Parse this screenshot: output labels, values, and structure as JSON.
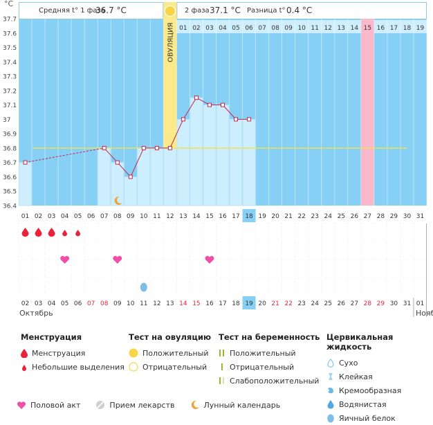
{
  "header": {
    "unit": "°C",
    "phase1_label": "Средняя t° 1 фаза",
    "phase1_value": "36.7 °C",
    "phase2_label": "2 фаза",
    "phase2_value": "37.1 °C",
    "diff_label": "Разница t°",
    "diff_value": "0.4 °C",
    "ovulation_label": "ОВУЛЯЦИЯ"
  },
  "months": {
    "current": "Октябрь",
    "next": "Нояб"
  },
  "colors": {
    "sky": "#87d0f5",
    "ovulation": "#fbe98a",
    "highlight": "#f9b8cc",
    "bar": "#cdeefc",
    "line": "#c8234b",
    "coverline": "#f2e24a"
  },
  "chart_data": {
    "type": "line",
    "ylim": [
      36.4,
      37.7
    ],
    "yticks": [
      "37.7",
      "37.6",
      "37.5",
      "37.4",
      "37.3",
      "37.2",
      "37.1",
      "37",
      "36.9",
      "36.8",
      "36.7",
      "36.6",
      "36.5",
      "36.4"
    ],
    "cycle_days": [
      "01",
      "02",
      "03",
      "04",
      "05",
      "06",
      "07",
      "08",
      "09",
      "10",
      "11",
      "12",
      "13",
      "14",
      "15",
      "16",
      "17",
      "18",
      "19",
      "20",
      "21",
      "22",
      "23",
      "24",
      "25",
      "26",
      "27",
      "28",
      "29",
      "30",
      "31"
    ],
    "phase2_days": [
      "01",
      "02",
      "03",
      "04",
      "05",
      "06",
      "07",
      "08",
      "09",
      "10",
      "11",
      "12",
      "13",
      "14",
      "15",
      "16",
      "17",
      "18",
      "19"
    ],
    "dates": [
      "02",
      "03",
      "04",
      "05",
      "06",
      "07",
      "08",
      "09",
      "10",
      "11",
      "12",
      "13",
      "14",
      "15",
      "16",
      "17",
      "18",
      "19",
      "20",
      "21",
      "22",
      "23",
      "24",
      "25",
      "26",
      "27",
      "28",
      "29",
      "30",
      "31",
      "01"
    ],
    "red_dates": [
      "07",
      "08",
      "14",
      "15",
      "21",
      "22",
      "28",
      "29"
    ],
    "current_cycle_day": "18",
    "current_date": "19",
    "ovulation_day": 12,
    "highlight_phase2_day": "15",
    "coverline": 36.8,
    "temperatures": [
      {
        "day": 1,
        "temp": 36.7
      },
      {
        "day": 7,
        "temp": 36.8
      },
      {
        "day": 8,
        "temp": 36.7
      },
      {
        "day": 9,
        "temp": 36.6
      },
      {
        "day": 10,
        "temp": 36.8
      },
      {
        "day": 11,
        "temp": 36.8
      },
      {
        "day": 12,
        "temp": 36.8
      },
      {
        "day": 13,
        "temp": 37.0
      },
      {
        "day": 14,
        "temp": 37.15
      },
      {
        "day": 15,
        "temp": 37.1
      },
      {
        "day": 16,
        "temp": 37.1
      },
      {
        "day": 17,
        "temp": 37.0
      },
      {
        "day": 18,
        "temp": 37.0
      }
    ],
    "menstruation": [
      1,
      2,
      3
    ],
    "spotting": [
      4,
      5
    ],
    "intercourse": [
      4,
      8,
      15
    ],
    "egg_white": [
      10
    ],
    "lunar": [
      8
    ]
  },
  "legend": {
    "menstruation": {
      "title": "Менструация",
      "items": [
        "Менструация",
        "Небольшие выделения"
      ]
    },
    "ovulation_test": {
      "title": "Тест на овуляцию",
      "items": [
        "Положительный",
        "Отрицательный"
      ]
    },
    "pregnancy_test": {
      "title": "Тест на беременность",
      "items": [
        "Положительный",
        "Отрицательный",
        "Слабоположительный"
      ]
    },
    "cervical": {
      "title": "Цервикальная жидкость",
      "items": [
        "Сухо",
        "Клейкая",
        "Кремообразная",
        "Водянистая",
        "Яичный белок"
      ]
    },
    "bottom": [
      "Половой акт",
      "Прием лекарств",
      "Лунный календарь"
    ]
  }
}
